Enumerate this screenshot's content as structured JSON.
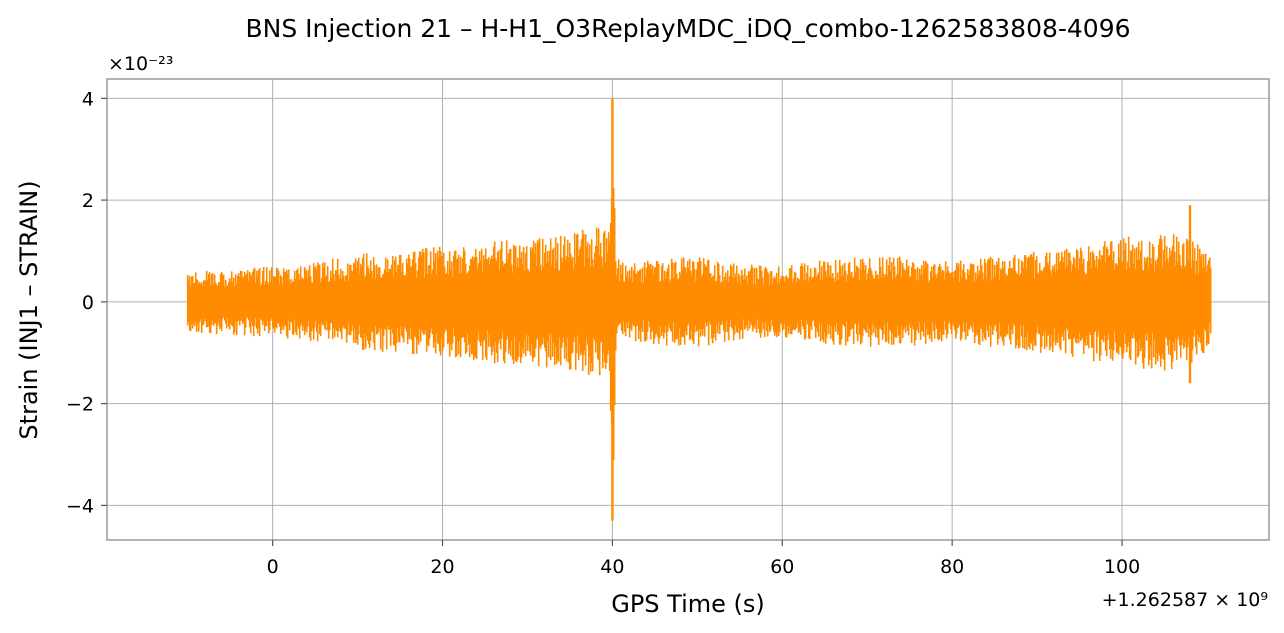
{
  "chart_data": {
    "type": "line",
    "title": "BNS Injection 21 – H-H1_O3ReplayMDC_iDQ_combo-1262583808-4096",
    "xlabel": "GPS Time (s)",
    "ylabel": "Strain (INJ1 – STRAIN)",
    "x_offset_label": "+1.262587 × 10⁹",
    "y_scale_label": "×10⁻²³",
    "xlim": [
      -19.5,
      117.3
    ],
    "ylim": [
      -4.68,
      4.38
    ],
    "x_ticks": [
      0,
      20,
      40,
      60,
      80,
      100
    ],
    "x_tick_labels": [
      "0",
      "20",
      "40",
      "60",
      "80",
      "100"
    ],
    "y_ticks": [
      -4,
      -2,
      0,
      2,
      4
    ],
    "y_tick_labels": [
      "−4",
      "−2",
      "0",
      "2",
      "4"
    ],
    "grid": true,
    "series": [
      {
        "color": "#ff8c00",
        "x_range": [
          -10,
          110.5
        ],
        "envelope": {
          "x": [
            -10,
            -5,
            0,
            5,
            10,
            15,
            20,
            25,
            30,
            35,
            38,
            39.5,
            40,
            40.5,
            42,
            45,
            50,
            55,
            60,
            65,
            70,
            75,
            80,
            85,
            90,
            95,
            100,
            105,
            108,
            110.5
          ],
          "upper": [
            0.6,
            0.65,
            0.7,
            0.8,
            0.95,
            1.0,
            1.1,
            1.2,
            1.25,
            1.35,
            1.5,
            1.6,
            4.0,
            0.9,
            0.75,
            0.85,
            0.9,
            0.75,
            0.7,
            0.85,
            0.9,
            0.9,
            0.8,
            0.9,
            1.0,
            1.1,
            1.3,
            1.35,
            1.3,
            0.85
          ],
          "lower": [
            -0.6,
            -0.65,
            -0.7,
            -0.8,
            -0.95,
            -1.0,
            -1.1,
            -1.2,
            -1.25,
            -1.35,
            -1.5,
            -1.7,
            -4.3,
            -0.9,
            -0.75,
            -0.85,
            -0.9,
            -0.75,
            -0.7,
            -0.85,
            -0.9,
            -0.9,
            -0.8,
            -0.9,
            -1.0,
            -1.1,
            -1.3,
            -1.35,
            -1.3,
            -0.85
          ]
        },
        "spikes": [
          {
            "x": 40.0,
            "max": 4.0,
            "min": -4.3
          },
          {
            "x": 108.0,
            "max": 1.9,
            "min": -1.6
          }
        ]
      }
    ]
  }
}
